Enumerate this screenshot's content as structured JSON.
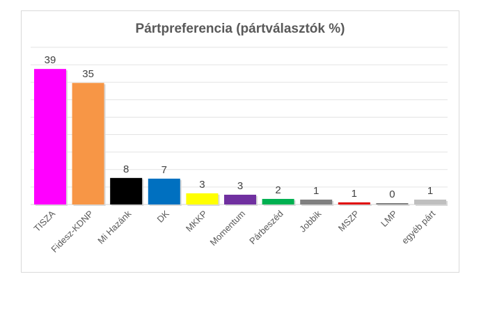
{
  "chart_data": {
    "type": "bar",
    "title": "Pártpreferencia (pártválasztók %)",
    "xlabel": "",
    "ylabel": "",
    "ylim": [
      0,
      45
    ],
    "grid": true,
    "gridline_step": 5,
    "categories": [
      "TISZA",
      "Fidesz-KDNP",
      "Mi Hazánk",
      "DK",
      "MKKP",
      "Momentum",
      "Párbeszéd",
      "Jobbik",
      "MSZP",
      "LMP",
      "egyéb párt"
    ],
    "values": [
      38.8,
      34.8,
      7.6,
      7.4,
      3.2,
      2.8,
      1.6,
      1.4,
      0.6,
      0.4,
      1.4
    ],
    "data_labels": [
      "39",
      "35",
      "8",
      "7",
      "3",
      "3",
      "2",
      "1",
      "1",
      "0",
      "1"
    ],
    "colors": [
      "#ff00ff",
      "#f79646",
      "#000000",
      "#0070c0",
      "#ffff00",
      "#7030a0",
      "#00b050",
      "#808080",
      "#e00000",
      "#808080",
      "#bfbfbf"
    ]
  }
}
